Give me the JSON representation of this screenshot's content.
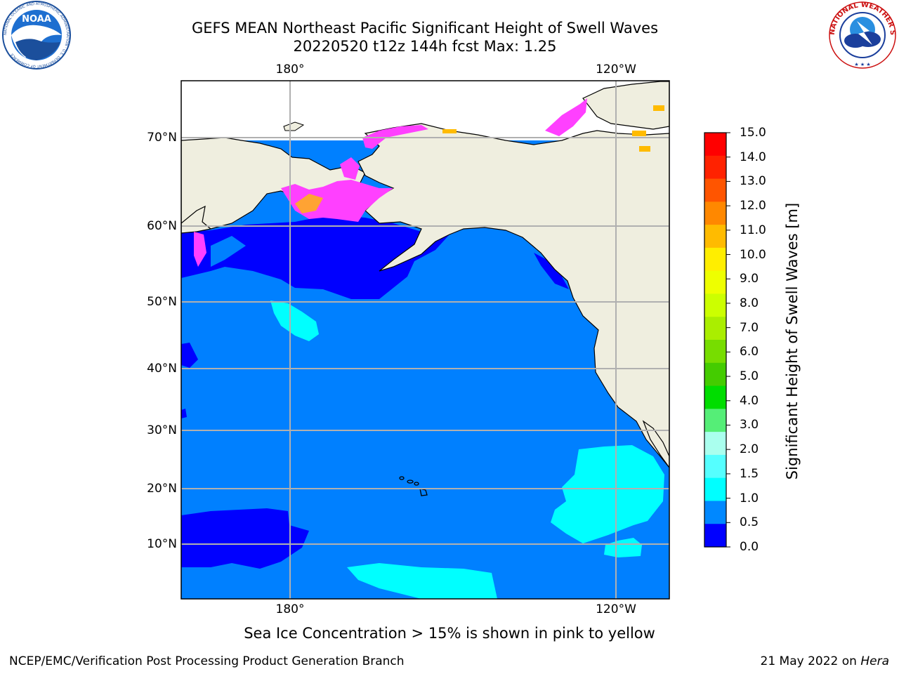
{
  "header": {
    "title_line1": "GEFS MEAN Northeast Pacific Significant Height of Swell Waves",
    "title_line2": "20220520 t12z 144h fcst   Max: 1.25"
  },
  "logos": {
    "noaa": {
      "text": "NOAA",
      "ring_text": "NATIONAL OCEANIC AND ATMOSPHERIC ADMINISTRATION · U.S. DEPARTMENT OF COMMERCE"
    },
    "nws": {
      "ring_text": "NATIONAL WEATHER SERVICE"
    }
  },
  "map": {
    "lon_labels": [
      "180°",
      "120°W"
    ],
    "lat_labels": [
      "70°N",
      "60°N",
      "50°N",
      "40°N",
      "30°N",
      "20°N",
      "10°N"
    ],
    "colors": {
      "ocean_0_0.5": "#0000ff",
      "ocean_0.5_1.0": "#0080ff",
      "ocean_1.0_1.5": "#00ffff",
      "ocean_1.5_2.0": "#80ffff",
      "land": "#efeedf",
      "sea_ice": "#ff40ff",
      "grid": "#b0b0b0"
    }
  },
  "colorbar": {
    "label_line": "Significant Height of Swell Waves [m]",
    "ticks": [
      "15.0",
      "14.0",
      "13.0",
      "12.0",
      "11.0",
      "10.0",
      "9.0",
      "8.0",
      "7.0",
      "6.0",
      "5.0",
      "4.0",
      "3.0",
      "2.0",
      "1.5",
      "1.0",
      "0.5",
      "0.0"
    ],
    "colors_top_to_bottom": [
      "#ff0000",
      "#ff2200",
      "#ff5500",
      "#ff8800",
      "#ffbb00",
      "#ffee00",
      "#eeff00",
      "#ccff00",
      "#aaee00",
      "#77dd00",
      "#44cc00",
      "#00dd00",
      "#55ee77",
      "#aaffee",
      "#55ffff",
      "#00ffff",
      "#0088ff",
      "#0000ff"
    ]
  },
  "footer": {
    "subtitle": "Sea Ice Concentration > 15% is shown in pink to yellow",
    "credit": "NCEP/EMC/Verification Post Processing Product Generation Branch",
    "date": "21 May 2022 on",
    "host": "Hera"
  }
}
